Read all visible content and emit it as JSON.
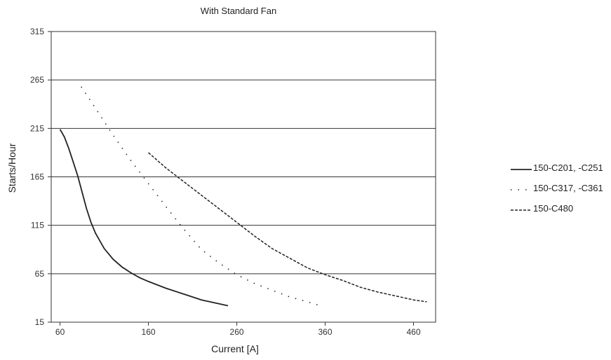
{
  "chart_data": {
    "type": "line",
    "title": "With Standard Fan",
    "xlabel": "Current [A]",
    "ylabel": "Starts/Hour",
    "xlim": [
      50,
      485
    ],
    "ylim": [
      15,
      315
    ],
    "x_ticks": [
      "60",
      "160",
      "260",
      "360",
      "460"
    ],
    "y_ticks": [
      "15",
      "65",
      "115",
      "165",
      "215",
      "265",
      "315"
    ],
    "grid": "horizontal",
    "legend_position": "right",
    "series": [
      {
        "name": "150-C201, -C251",
        "style": "solid",
        "color": "#222222",
        "points": [
          [
            60,
            214
          ],
          [
            65,
            206
          ],
          [
            70,
            194
          ],
          [
            75,
            180
          ],
          [
            80,
            166
          ],
          [
            85,
            149
          ],
          [
            90,
            132
          ],
          [
            95,
            118
          ],
          [
            100,
            107
          ],
          [
            110,
            91
          ],
          [
            120,
            80
          ],
          [
            130,
            72
          ],
          [
            140,
            66
          ],
          [
            150,
            61
          ],
          [
            160,
            57
          ],
          [
            180,
            50
          ],
          [
            200,
            44
          ],
          [
            220,
            38
          ],
          [
            240,
            34
          ],
          [
            250,
            32
          ]
        ]
      },
      {
        "name": "150-C317, -C361",
        "style": "dotted",
        "color": "#222222",
        "points": [
          [
            84,
            258
          ],
          [
            100,
            236
          ],
          [
            120,
            208
          ],
          [
            140,
            182
          ],
          [
            160,
            158
          ],
          [
            180,
            134
          ],
          [
            200,
            111
          ],
          [
            220,
            90
          ],
          [
            240,
            76
          ],
          [
            260,
            64
          ],
          [
            280,
            55
          ],
          [
            300,
            48
          ],
          [
            320,
            41
          ],
          [
            340,
            36
          ],
          [
            355,
            32
          ]
        ]
      },
      {
        "name": "150-C480",
        "style": "dashed",
        "color": "#222222",
        "points": [
          [
            160,
            190
          ],
          [
            180,
            174
          ],
          [
            200,
            160
          ],
          [
            220,
            146
          ],
          [
            240,
            132
          ],
          [
            260,
            118
          ],
          [
            280,
            104
          ],
          [
            300,
            91
          ],
          [
            320,
            81
          ],
          [
            340,
            71
          ],
          [
            360,
            64
          ],
          [
            380,
            58
          ],
          [
            400,
            51
          ],
          [
            420,
            46
          ],
          [
            440,
            42
          ],
          [
            460,
            38
          ],
          [
            475,
            36
          ]
        ]
      }
    ]
  }
}
